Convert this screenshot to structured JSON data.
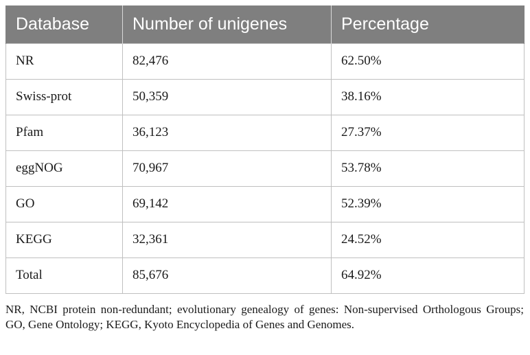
{
  "table": {
    "headers": [
      "Database",
      "Number of unigenes",
      "Percentage"
    ],
    "rows": [
      [
        "NR",
        "82,476",
        "62.50%"
      ],
      [
        "Swiss-prot",
        "50,359",
        "38.16%"
      ],
      [
        "Pfam",
        "36,123",
        "27.37%"
      ],
      [
        "eggNOG",
        "70,967",
        "53.78%"
      ],
      [
        "GO",
        "69,142",
        "52.39%"
      ],
      [
        "KEGG",
        "32,361",
        "24.52%"
      ],
      [
        "Total",
        "85,676",
        "64.92%"
      ]
    ]
  },
  "footnote": "NR, NCBI protein non-redundant; evolutionary genealogy of genes: Non-supervised Orthologous Groups; GO, Gene Ontology; KEGG, Kyoto Encyclopedia of Genes and Genomes."
}
